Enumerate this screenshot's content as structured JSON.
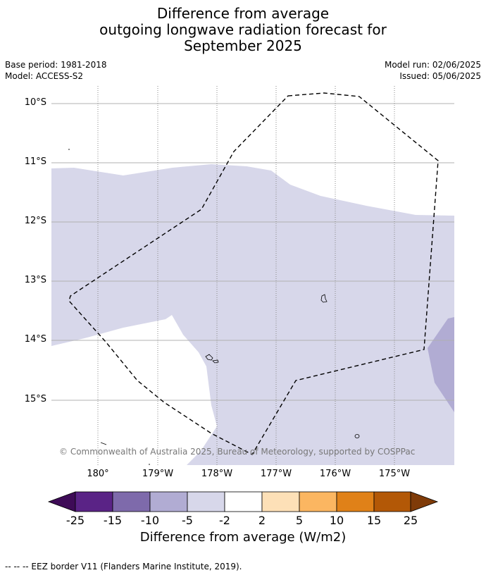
{
  "title": {
    "line1": "Difference from average",
    "line2": "outgoing longwave radiation forecast for",
    "line3": "September 2025"
  },
  "meta": {
    "base_period": "Base period: 1981-2018",
    "model": "Model: ACCESS-S2",
    "model_run": "Model run: 02/06/2025",
    "issued": "Issued: 05/06/2025"
  },
  "map": {
    "latitude_labels": [
      "10°S",
      "11°S",
      "12°S",
      "13°S",
      "14°S",
      "15°S"
    ],
    "longitude_labels": [
      "180°",
      "179°W",
      "178°W",
      "177°W",
      "176°W",
      "175°W"
    ],
    "copyright": "© Commonwealth of Australia 2025, Bureau of Meteorology, supported by COSPPac",
    "colors": {
      "category_minus5_minus2": "#d7d7ea",
      "category_minus10_minus5": "#b1acd3",
      "ocean_background": "#ffffff",
      "eez_border": "#000000"
    }
  },
  "colorbar": {
    "label": "Difference from average (W/m2)",
    "tick_labels": [
      "-25",
      "-15",
      "-10",
      "-5",
      "-2",
      "2",
      "5",
      "10",
      "15",
      "25"
    ],
    "colors": {
      "below_min": "#3e0b57",
      "c1": "#5a2386",
      "c2": "#7e6aab",
      "c3": "#b1acd3",
      "c4": "#d7d7ea",
      "c5": "#ffffff",
      "c6": "#fde0b7",
      "c7": "#fbb661",
      "c8": "#e08118",
      "c9": "#b35806",
      "above_max": "#7f3b08"
    }
  },
  "footer": {
    "legend_text": "--  --  -- EEZ border V11 (Flanders Marine Institute, 2019)."
  }
}
